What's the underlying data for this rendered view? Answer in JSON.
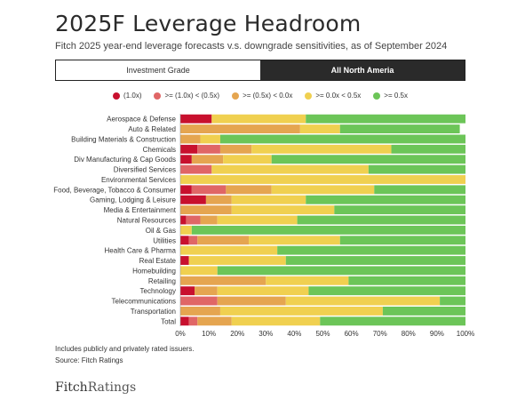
{
  "title": "2025F Leverage Headroom",
  "subtitle": "Fitch 2025 year-end leverage forecasts v.s. downgrade sensitivities, as of September 2024",
  "tabs": [
    {
      "label": "Investment Grade",
      "active": true
    },
    {
      "label": "All North Ameria",
      "active": false
    }
  ],
  "notes": {
    "line1": "Includes publicly and privately rated issuers.",
    "line2": "Source: Fitch Ratings"
  },
  "logo": {
    "part1": "Fitch",
    "part2": "Ratings"
  },
  "chart_data": {
    "type": "bar",
    "orientation": "horizontal",
    "stacked": true,
    "categories": [
      "Aerospace & Defense",
      "Auto & Related",
      "Building Materials & Construction",
      "Chemicals",
      "Div Manufacturing & Cap Goods",
      "Diversified Services",
      "Environmental Services",
      "Food, Beverage, Tobacco & Consumer",
      "Gaming, Lodging & Leisure",
      "Media & Entertainment",
      "Natural Resources",
      "Oil & Gas",
      "Utilities",
      "Health Care & Pharma",
      "Real Estate",
      "Homebuilding",
      "Retailing",
      "Technology",
      "Telecommunications",
      "Transportation",
      "Total"
    ],
    "series": [
      {
        "name": "(1.0x)",
        "color": "#c8102e",
        "values": [
          11,
          0,
          0,
          6,
          4,
          0,
          0,
          4,
          9,
          0,
          2,
          0,
          3,
          0,
          3,
          0,
          0,
          5,
          0,
          0,
          3
        ]
      },
      {
        "name": ">= (1.0x) < (0.5x)",
        "color": "#e06666",
        "values": [
          0,
          0,
          0,
          8,
          0,
          11,
          0,
          12,
          0,
          0,
          5,
          0,
          3,
          0,
          0,
          0,
          0,
          0,
          13,
          0,
          3
        ]
      },
      {
        "name": ">= (0.5x) < 0.0x",
        "color": "#e5a550",
        "values": [
          0,
          42,
          7,
          11,
          11,
          0,
          0,
          16,
          9,
          18,
          6,
          0,
          18,
          0,
          0,
          0,
          30,
          8,
          24,
          14,
          12
        ]
      },
      {
        "name": ">= 0.0x < 0.5x",
        "color": "#f0d050",
        "values": [
          33,
          14,
          7,
          49,
          17,
          55,
          100,
          36,
          26,
          36,
          28,
          4,
          32,
          34,
          34,
          13,
          29,
          32,
          54,
          57,
          31
        ]
      },
      {
        "name": ">= 0.5x",
        "color": "#6cc558",
        "values": [
          56,
          42,
          86,
          26,
          68,
          34,
          0,
          32,
          56,
          46,
          59,
          96,
          44,
          66,
          63,
          87,
          41,
          55,
          9,
          29,
          51
        ]
      }
    ],
    "x_ticks": [
      "0%",
      "10%",
      "20%",
      "30%",
      "40%",
      "50%",
      "60%",
      "70%",
      "80%",
      "90%",
      "100%"
    ],
    "xlim": [
      0,
      100
    ],
    "grid": false,
    "legend_position": "top"
  }
}
